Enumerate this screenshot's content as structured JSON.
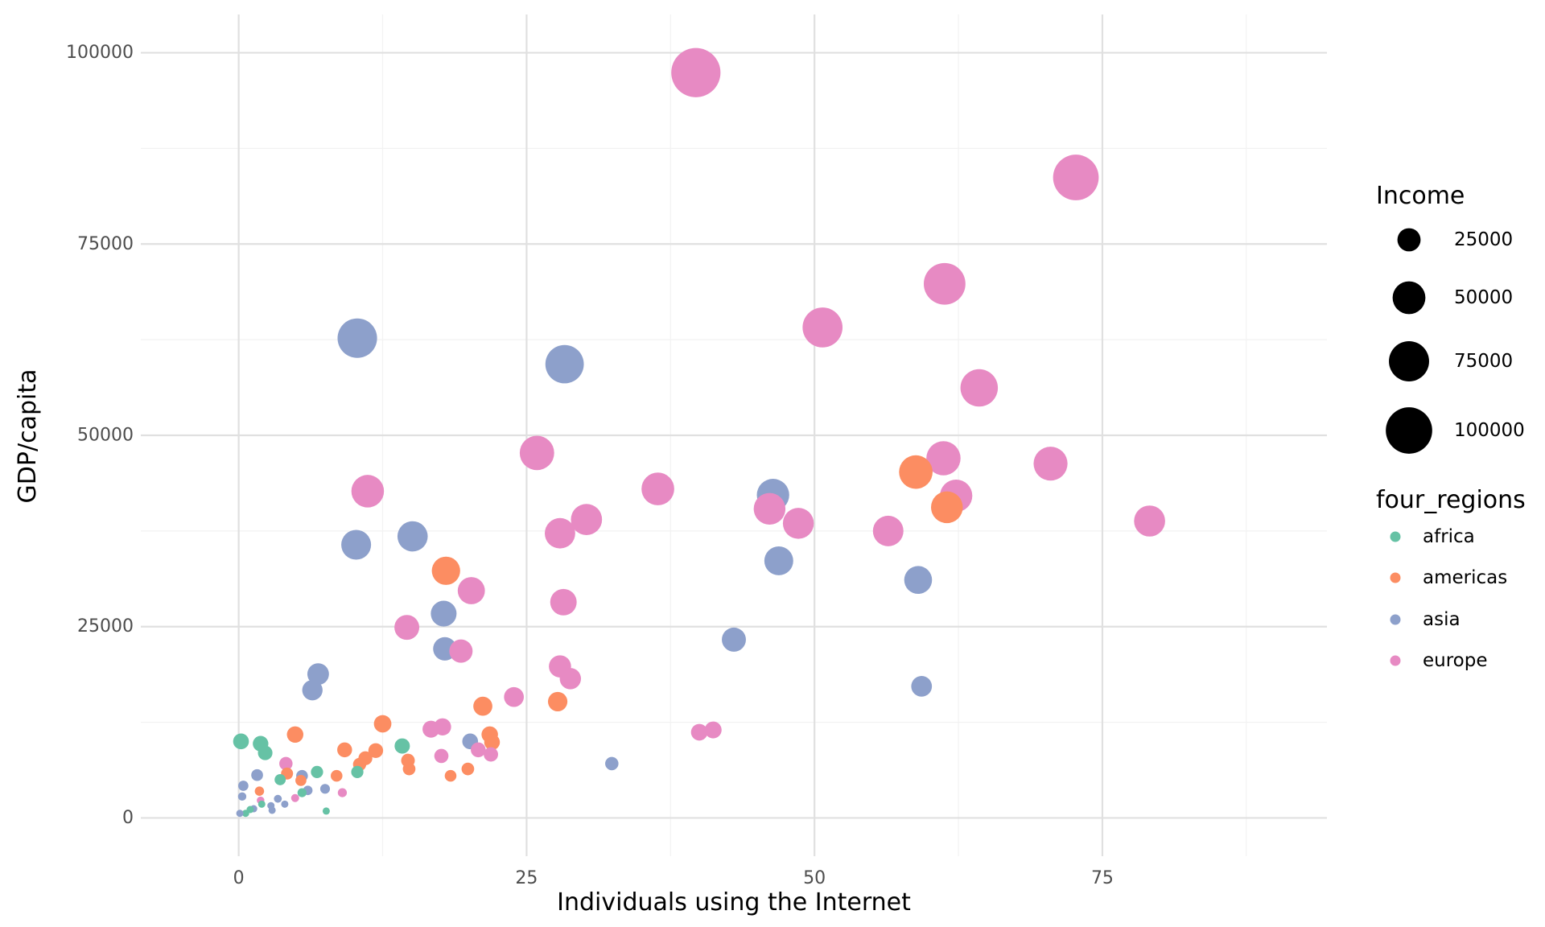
{
  "chart_data": {
    "type": "scatter",
    "title": "",
    "xlabel": "Individuals using the Internet",
    "ylabel": "GDP/capita",
    "xlim": [
      -8.5,
      94.5
    ],
    "ylim": [
      -5000,
      105000
    ],
    "x_ticks": [
      0,
      25,
      50,
      75
    ],
    "x_tick_labels": [
      "0",
      "25",
      "50",
      "75"
    ],
    "y_ticks": [
      0,
      25000,
      50000,
      75000,
      100000
    ],
    "y_tick_labels": [
      "0",
      "25000",
      "50000",
      "75000",
      "100000"
    ],
    "grid": true,
    "size_legend": {
      "title": "Income",
      "values": [
        25000,
        50000,
        75000,
        100000
      ],
      "labels": [
        "25000",
        "50000",
        "75000",
        "100000"
      ]
    },
    "color_legend": {
      "title": "four_regions",
      "placement": "right"
    },
    "colors": {
      "africa": "#66c2a5",
      "americas": "#fc8d62",
      "asia": "#8da0cb",
      "europe": "#e78ac3"
    },
    "series": [
      {
        "name": "africa",
        "color": "#66c2a5",
        "points": [
          {
            "x": 0.2,
            "y": 10000,
            "size": 10000
          },
          {
            "x": 1.9,
            "y": 9700,
            "size": 9700
          },
          {
            "x": 2.3,
            "y": 8500,
            "size": 8500
          },
          {
            "x": 14.2,
            "y": 9400,
            "size": 9400
          },
          {
            "x": 10.3,
            "y": 6000,
            "size": 6000
          },
          {
            "x": 6.8,
            "y": 6000,
            "size": 6000
          },
          {
            "x": 5.5,
            "y": 3300,
            "size": 3300
          },
          {
            "x": 3.6,
            "y": 5000,
            "size": 5000
          },
          {
            "x": 7.6,
            "y": 900,
            "size": 900
          },
          {
            "x": 1.0,
            "y": 1100,
            "size": 1100
          },
          {
            "x": 0.6,
            "y": 600,
            "size": 600
          },
          {
            "x": 2.0,
            "y": 1800,
            "size": 1800
          }
        ]
      },
      {
        "name": "americas",
        "color": "#fc8d62",
        "points": [
          {
            "x": 58.8,
            "y": 45200,
            "size": 45200
          },
          {
            "x": 61.5,
            "y": 40600,
            "size": 40600
          },
          {
            "x": 18.0,
            "y": 32300,
            "size": 32300
          },
          {
            "x": 27.7,
            "y": 15200,
            "size": 15200
          },
          {
            "x": 21.2,
            "y": 14600,
            "size": 14600
          },
          {
            "x": 12.5,
            "y": 12300,
            "size": 12300
          },
          {
            "x": 21.8,
            "y": 10900,
            "size": 10900
          },
          {
            "x": 4.9,
            "y": 10900,
            "size": 10900
          },
          {
            "x": 9.2,
            "y": 8900,
            "size": 8900
          },
          {
            "x": 11.9,
            "y": 8800,
            "size": 8800
          },
          {
            "x": 22.0,
            "y": 9900,
            "size": 9900
          },
          {
            "x": 14.7,
            "y": 7500,
            "size": 7500
          },
          {
            "x": 14.8,
            "y": 6400,
            "size": 6400
          },
          {
            "x": 11.0,
            "y": 7800,
            "size": 7800
          },
          {
            "x": 10.5,
            "y": 7000,
            "size": 7000
          },
          {
            "x": 19.9,
            "y": 6400,
            "size": 6400
          },
          {
            "x": 18.4,
            "y": 5500,
            "size": 5500
          },
          {
            "x": 8.5,
            "y": 5500,
            "size": 5500
          },
          {
            "x": 4.2,
            "y": 5800,
            "size": 5800
          },
          {
            "x": 5.4,
            "y": 4900,
            "size": 4900
          },
          {
            "x": 1.8,
            "y": 3500,
            "size": 3500
          }
        ]
      },
      {
        "name": "asia",
        "color": "#8da0cb",
        "points": [
          {
            "x": 10.3,
            "y": 62700,
            "size": 62700
          },
          {
            "x": 28.3,
            "y": 59300,
            "size": 59300
          },
          {
            "x": 15.1,
            "y": 36800,
            "size": 36800
          },
          {
            "x": 10.2,
            "y": 35700,
            "size": 35700
          },
          {
            "x": 46.4,
            "y": 42200,
            "size": 42200
          },
          {
            "x": 46.9,
            "y": 33600,
            "size": 33600
          },
          {
            "x": 59.0,
            "y": 31100,
            "size": 31100
          },
          {
            "x": 17.8,
            "y": 26700,
            "size": 26700
          },
          {
            "x": 17.9,
            "y": 22100,
            "size": 22100
          },
          {
            "x": 43.0,
            "y": 23300,
            "size": 23300
          },
          {
            "x": 6.9,
            "y": 18800,
            "size": 18800
          },
          {
            "x": 6.4,
            "y": 16700,
            "size": 16700
          },
          {
            "x": 59.3,
            "y": 17200,
            "size": 17200
          },
          {
            "x": 20.1,
            "y": 10000,
            "size": 10000
          },
          {
            "x": 32.4,
            "y": 7100,
            "size": 7100
          },
          {
            "x": 5.5,
            "y": 5500,
            "size": 5500
          },
          {
            "x": 7.5,
            "y": 3800,
            "size": 3800
          },
          {
            "x": 6.0,
            "y": 3600,
            "size": 3600
          },
          {
            "x": 1.6,
            "y": 5600,
            "size": 5600
          },
          {
            "x": 0.4,
            "y": 4200,
            "size": 4200
          },
          {
            "x": 0.3,
            "y": 2800,
            "size": 2800
          },
          {
            "x": 3.4,
            "y": 2500,
            "size": 2500
          },
          {
            "x": 4.0,
            "y": 1800,
            "size": 1800
          },
          {
            "x": 2.8,
            "y": 1600,
            "size": 1600
          },
          {
            "x": 1.3,
            "y": 1200,
            "size": 1200
          },
          {
            "x": 2.9,
            "y": 1000,
            "size": 1000
          },
          {
            "x": 0.1,
            "y": 600,
            "size": 600
          }
        ]
      },
      {
        "name": "europe",
        "color": "#e78ac3",
        "points": [
          {
            "x": 39.7,
            "y": 97400,
            "size": 97400
          },
          {
            "x": 72.7,
            "y": 83700,
            "size": 83700
          },
          {
            "x": 61.3,
            "y": 69800,
            "size": 69800
          },
          {
            "x": 50.7,
            "y": 64100,
            "size": 64100
          },
          {
            "x": 64.3,
            "y": 56200,
            "size": 56200
          },
          {
            "x": 25.9,
            "y": 47700,
            "size": 47700
          },
          {
            "x": 61.2,
            "y": 47000,
            "size": 47000
          },
          {
            "x": 70.5,
            "y": 46300,
            "size": 46300
          },
          {
            "x": 36.4,
            "y": 43000,
            "size": 43000
          },
          {
            "x": 11.2,
            "y": 42700,
            "size": 42700
          },
          {
            "x": 62.3,
            "y": 42100,
            "size": 42100
          },
          {
            "x": 46.1,
            "y": 40400,
            "size": 40400
          },
          {
            "x": 30.2,
            "y": 39000,
            "size": 39000
          },
          {
            "x": 79.1,
            "y": 38800,
            "size": 38800
          },
          {
            "x": 48.6,
            "y": 38500,
            "size": 38500
          },
          {
            "x": 56.4,
            "y": 37500,
            "size": 37500
          },
          {
            "x": 27.9,
            "y": 37200,
            "size": 37200
          },
          {
            "x": 20.2,
            "y": 29700,
            "size": 29700
          },
          {
            "x": 28.2,
            "y": 28200,
            "size": 28200
          },
          {
            "x": 14.6,
            "y": 24900,
            "size": 24900
          },
          {
            "x": 19.3,
            "y": 21800,
            "size": 21800
          },
          {
            "x": 27.9,
            "y": 19800,
            "size": 19800
          },
          {
            "x": 28.8,
            "y": 18200,
            "size": 18200
          },
          {
            "x": 23.9,
            "y": 15800,
            "size": 15800
          },
          {
            "x": 17.7,
            "y": 11900,
            "size": 11900
          },
          {
            "x": 16.7,
            "y": 11600,
            "size": 11600
          },
          {
            "x": 41.2,
            "y": 11500,
            "size": 11500
          },
          {
            "x": 40.0,
            "y": 11200,
            "size": 11200
          },
          {
            "x": 20.8,
            "y": 8900,
            "size": 8900
          },
          {
            "x": 21.9,
            "y": 8300,
            "size": 8300
          },
          {
            "x": 17.6,
            "y": 8100,
            "size": 8100
          },
          {
            "x": 4.1,
            "y": 7100,
            "size": 7100
          },
          {
            "x": 9.0,
            "y": 3300,
            "size": 3300
          },
          {
            "x": 4.9,
            "y": 2600,
            "size": 2600
          },
          {
            "x": 1.9,
            "y": 2300,
            "size": 2300
          }
        ]
      }
    ]
  }
}
